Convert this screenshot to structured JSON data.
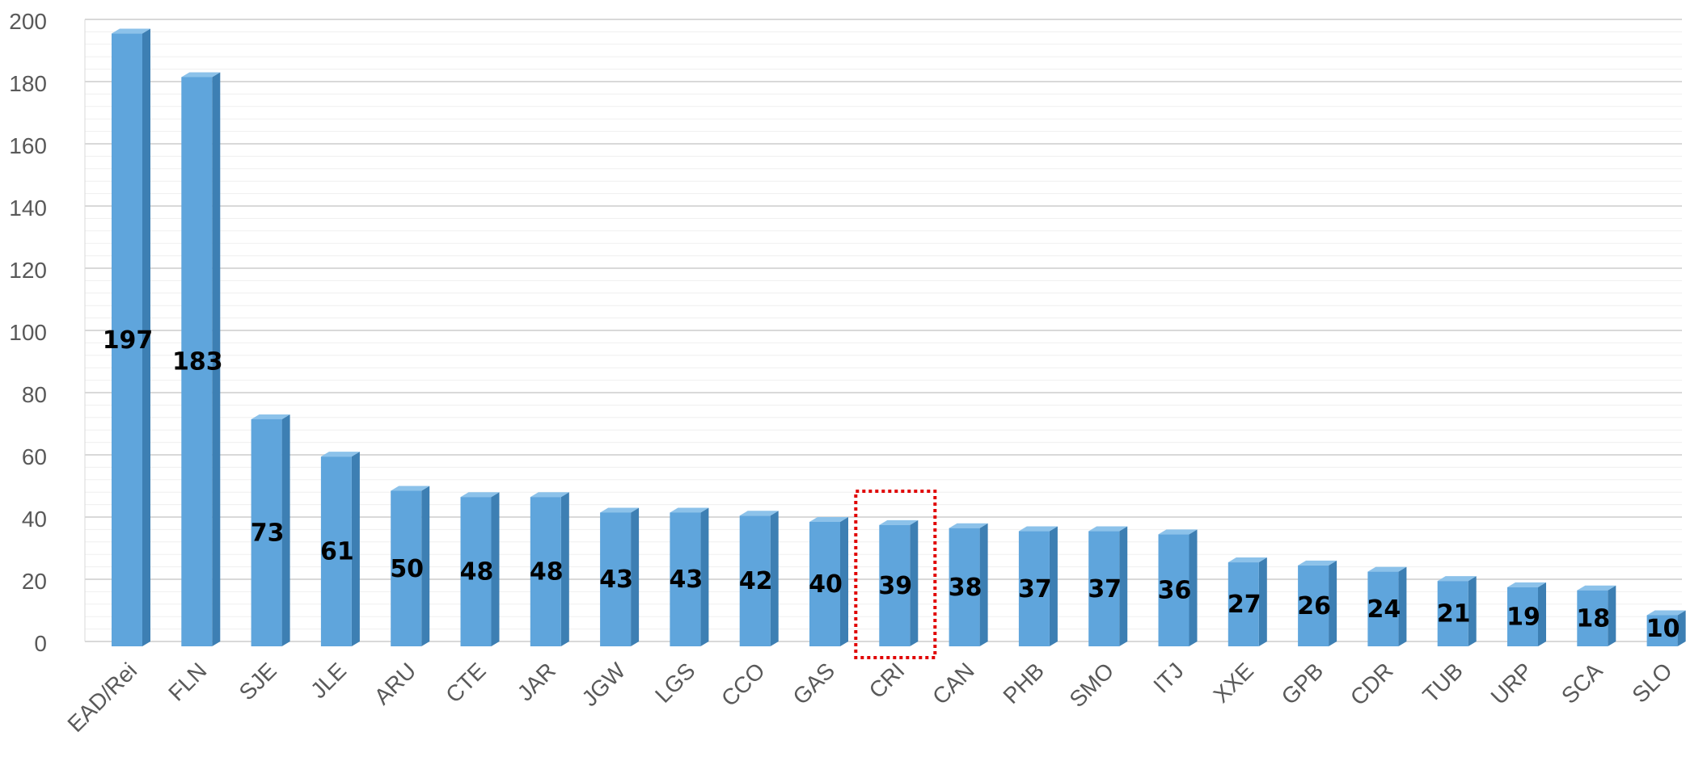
{
  "colors": {
    "bar_front": "#5fa5dc",
    "bar_side": "#3d7fb3",
    "bar_top": "#8cc2ea",
    "grid_major": "#d9d9d9",
    "grid_minor": "#efefef",
    "highlight": "#e00000"
  },
  "chart_data": {
    "type": "bar",
    "title": "",
    "xlabel": "",
    "ylabel": "",
    "ylim": [
      0,
      200
    ],
    "yticks": [
      0,
      20,
      40,
      60,
      80,
      100,
      120,
      140,
      160,
      180,
      200
    ],
    "grid": true,
    "style": "3d-columns",
    "categories": [
      "EAD/Rei",
      "FLN",
      "SJE",
      "JLE",
      "ARU",
      "CTE",
      "JAR",
      "JGW",
      "LGS",
      "CCO",
      "GAS",
      "CRI",
      "CAN",
      "PHB",
      "SMO",
      "ITJ",
      "XXE",
      "GPB",
      "CDR",
      "TUB",
      "URP",
      "SCA",
      "SLO"
    ],
    "values": [
      197,
      183,
      73,
      61,
      50,
      48,
      48,
      43,
      43,
      42,
      40,
      39,
      38,
      37,
      37,
      36,
      27,
      26,
      24,
      21,
      19,
      18,
      10
    ],
    "data_labels": [
      "197",
      "183",
      "73",
      "61",
      "50",
      "48",
      "48",
      "43",
      "43",
      "42",
      "40",
      "39",
      "38",
      "37",
      "37",
      "36",
      "27",
      "26",
      "24",
      "21",
      "19",
      "18",
      "10"
    ],
    "highlighted_category": "CRI",
    "highlight_style": "dotted box"
  }
}
